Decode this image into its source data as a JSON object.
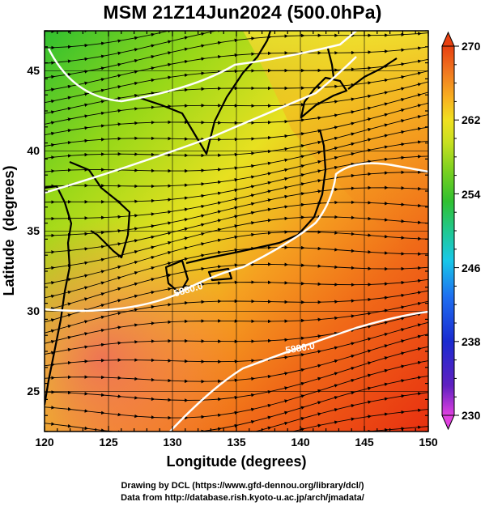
{
  "title": "MSM 21Z14Jun2024 (500.0hPa)",
  "x_axis": {
    "label": "Longitude (degrees)",
    "ticks": [
      "120",
      "125",
      "130",
      "135",
      "140",
      "145",
      "150"
    ],
    "range": [
      120,
      150
    ]
  },
  "y_axis": {
    "label": "Latitude  (degrees)",
    "ticks": [
      "25",
      "30",
      "35",
      "40",
      "45"
    ],
    "range": [
      22.5,
      47.5
    ]
  },
  "colorbar": {
    "ticks": [
      "270",
      "262",
      "254",
      "246",
      "238",
      "230"
    ],
    "range": [
      230,
      270
    ],
    "colors": [
      "#e040e0",
      "#6020c0",
      "#1a2ad0",
      "#1e6ef0",
      "#18c8e8",
      "#20c890",
      "#30c030",
      "#78d020",
      "#c8e020",
      "#f0e020",
      "#f8b020",
      "#f07820",
      "#e84010"
    ]
  },
  "contour_labels": [
    "5880.0",
    "5880.0"
  ],
  "credits": [
    "Drawing by DCL (https://www.gfd-dennou.org/library/dcl/)",
    "Data from http://database.rish.kyoto-u.ac.jp/arch/jmadata/"
  ]
}
